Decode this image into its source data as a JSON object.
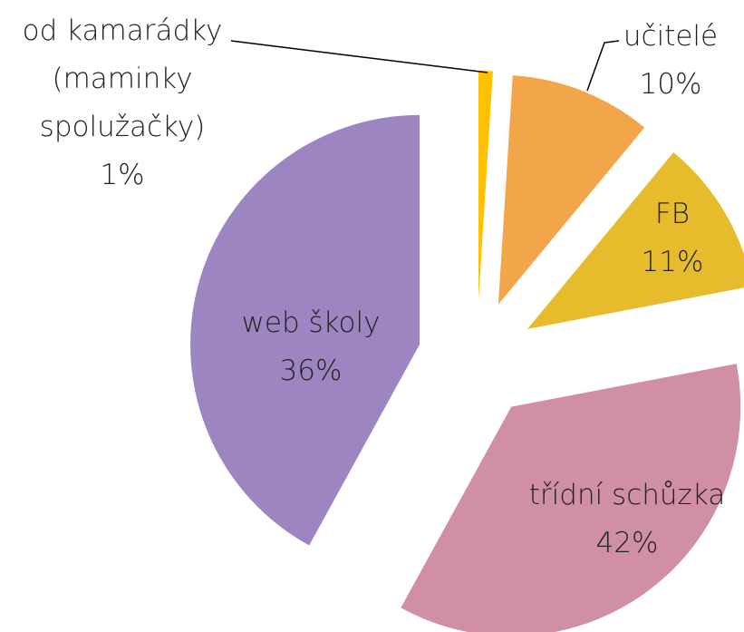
{
  "chart_data": {
    "type": "pie",
    "categories": [
      "od kamarádky (maminky spolužačky)",
      "učitelé",
      "FB",
      "web školy",
      "třídní schůzka"
    ],
    "values": [
      1,
      10,
      11,
      36,
      42
    ],
    "value_labels": [
      "1%",
      "10%",
      "11%",
      "36%",
      "42%"
    ],
    "colors": [
      "#ffc000",
      "#f3a54a",
      "#e6bc2d",
      "#d08fa6",
      "#9c85c1"
    ],
    "exploded": true
  }
}
